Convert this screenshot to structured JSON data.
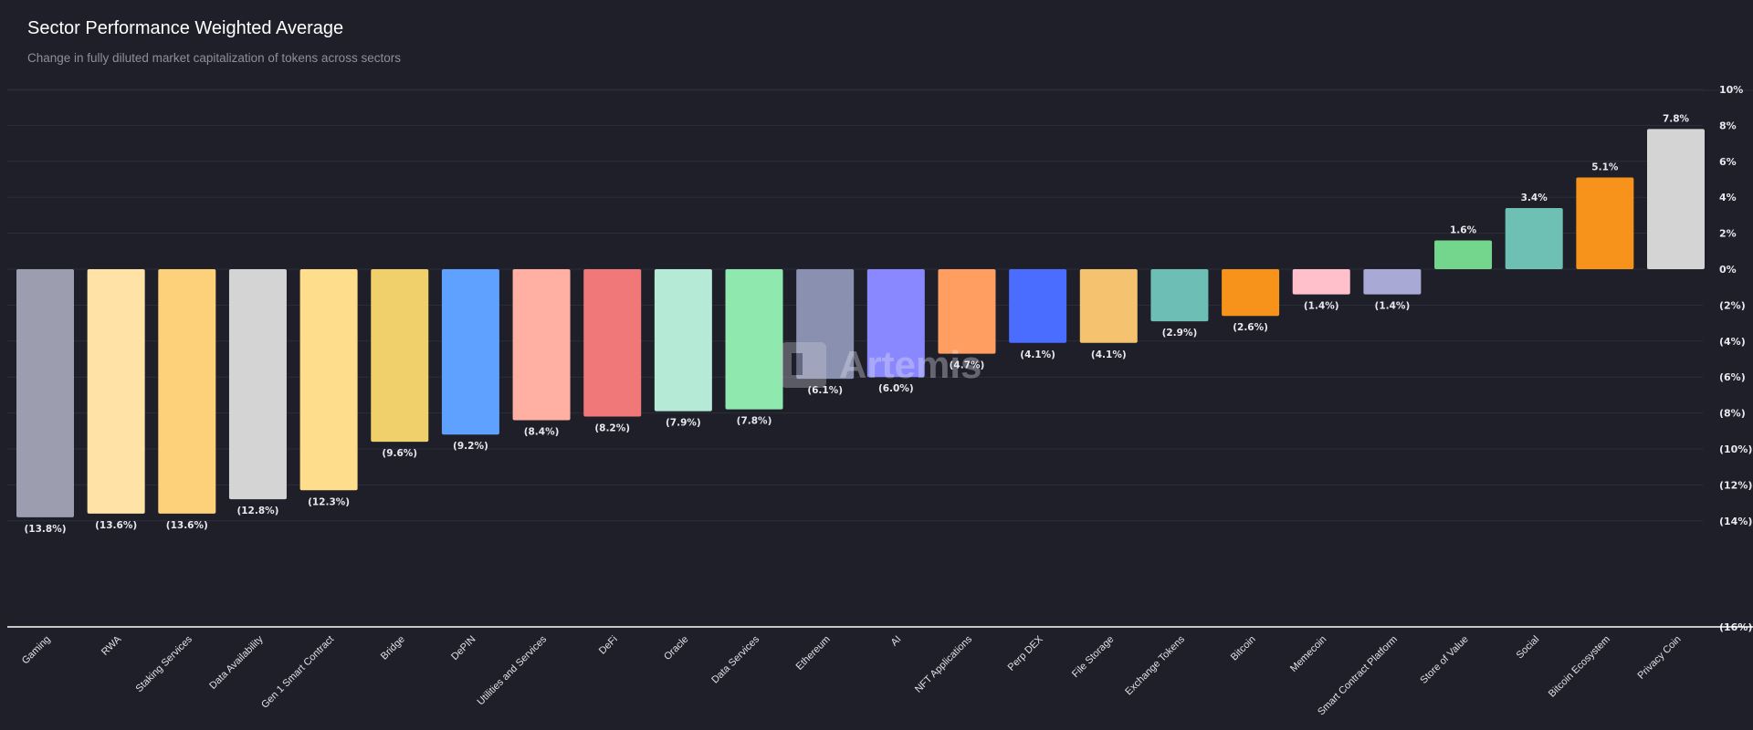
{
  "header": {
    "title": "Sector Performance Weighted Average",
    "subtitle": "Change in fully diluted market capitalization of tokens across sectors"
  },
  "watermark": "Artemis",
  "chart_data": {
    "type": "bar",
    "title": "Sector Performance Weighted Average",
    "subtitle": "Change in fully diluted market capitalization of tokens across sectors",
    "xlabel": "",
    "ylabel": "",
    "ylim": [
      -16,
      10
    ],
    "y_axis_position": "right",
    "grid": true,
    "yticks": [
      "10%",
      "8%",
      "6%",
      "4%",
      "2%",
      "0%",
      "(2%)",
      "(4%)",
      "(6%)",
      "(8%)",
      "(10%)",
      "(12%)",
      "(14%)",
      "(16%)"
    ],
    "ytick_values": [
      10,
      8,
      6,
      4,
      2,
      0,
      -2,
      -4,
      -6,
      -8,
      -10,
      -12,
      -14,
      -16
    ],
    "categories": [
      "Gaming",
      "RWA",
      "Staking Services",
      "Data Availability",
      "Gen 1 Smart Contract",
      "Bridge",
      "DePIN",
      "Utilities and Services",
      "DeFi",
      "Oracle",
      "Data Services",
      "Ethereum",
      "AI",
      "NFT Applications",
      "Perp DEX",
      "File Storage",
      "Exchange Tokens",
      "Bitcoin",
      "Memecoin",
      "Smart Contract Platform",
      "Store of Value",
      "Social",
      "Bitcoin Ecosystem",
      "Privacy Coin"
    ],
    "values": [
      -13.8,
      -13.6,
      -13.6,
      -12.8,
      -12.3,
      -9.6,
      -9.2,
      -8.4,
      -8.2,
      -7.9,
      -7.8,
      -6.1,
      -6.0,
      -4.7,
      -4.1,
      -4.1,
      -2.9,
      -2.6,
      -1.4,
      -1.4,
      1.6,
      3.4,
      5.1,
      7.8
    ],
    "data_labels": [
      "(13.8%)",
      "(13.6%)",
      "(13.6%)",
      "(12.8%)",
      "(12.3%)",
      "(9.6%)",
      "(9.2%)",
      "(8.4%)",
      "(8.2%)",
      "(7.9%)",
      "(7.8%)",
      "(6.1%)",
      "(6.0%)",
      "(4.7%)",
      "(4.1%)",
      "(4.1%)",
      "(2.9%)",
      "(2.6%)",
      "(1.4%)",
      "(1.4%)",
      "1.6%",
      "3.4%",
      "5.1%",
      "7.8%"
    ],
    "colors": [
      "#9d9db0",
      "#fee2a6",
      "#fdd07a",
      "#d4d4d4",
      "#fedd8d",
      "#f0d06a",
      "#5ea1ff",
      "#ffb0a3",
      "#f07878",
      "#b4ead6",
      "#8fe8ad",
      "#8a91b0",
      "#8a88ff",
      "#ff9e60",
      "#4a6cff",
      "#f5c26f",
      "#6dbfb6",
      "#f7931a",
      "#ffc0cc",
      "#a9a9d6",
      "#74d68c",
      "#6ec0b4",
      "#f7931a",
      "#d4d4d4"
    ]
  }
}
